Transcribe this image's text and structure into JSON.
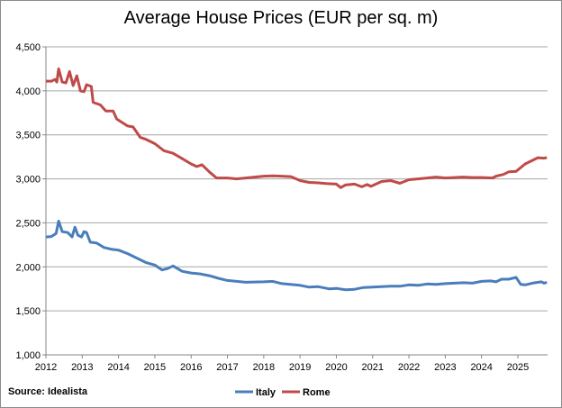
{
  "chart_data": {
    "type": "line",
    "title": "Average House Prices (EUR per sq. m)",
    "source": "Source: Idealista",
    "xlabel": "",
    "ylabel": "",
    "xlim": [
      2012,
      2025.8
    ],
    "ylim": [
      1000,
      4500
    ],
    "x_ticks": [
      "2012",
      "2013",
      "2014",
      "2015",
      "2016",
      "2017",
      "2018",
      "2019",
      "2020",
      "2021",
      "2022",
      "2023",
      "2024",
      "2025"
    ],
    "y_ticks": [
      "1,000",
      "1,500",
      "2,000",
      "2,500",
      "3,000",
      "3,500",
      "4,000",
      "4,500"
    ],
    "grid": "horizontal",
    "legend": "bottom",
    "series": [
      {
        "name": "Italy",
        "color": "#4a7ebb",
        "points": [
          [
            2012,
            2340
          ],
          [
            2012.15,
            2345
          ],
          [
            2012.28,
            2380
          ],
          [
            2012.35,
            2520
          ],
          [
            2012.45,
            2400
          ],
          [
            2012.6,
            2390
          ],
          [
            2012.72,
            2340
          ],
          [
            2012.8,
            2450
          ],
          [
            2012.88,
            2360
          ],
          [
            2012.98,
            2340
          ],
          [
            2013.05,
            2400
          ],
          [
            2013.12,
            2390
          ],
          [
            2013.22,
            2280
          ],
          [
            2013.4,
            2270
          ],
          [
            2013.6,
            2220
          ],
          [
            2013.8,
            2200
          ],
          [
            2014,
            2190
          ],
          [
            2014.25,
            2150
          ],
          [
            2014.5,
            2100
          ],
          [
            2014.75,
            2050
          ],
          [
            2015,
            2020
          ],
          [
            2015.2,
            1965
          ],
          [
            2015.35,
            1980
          ],
          [
            2015.5,
            2010
          ],
          [
            2015.75,
            1950
          ],
          [
            2016,
            1930
          ],
          [
            2016.25,
            1920
          ],
          [
            2016.5,
            1900
          ],
          [
            2016.75,
            1870
          ],
          [
            2017,
            1845
          ],
          [
            2017.5,
            1825
          ],
          [
            2018,
            1830
          ],
          [
            2018.25,
            1835
          ],
          [
            2018.5,
            1810
          ],
          [
            2019,
            1790
          ],
          [
            2019.25,
            1770
          ],
          [
            2019.5,
            1775
          ],
          [
            2019.8,
            1750
          ],
          [
            2020,
            1755
          ],
          [
            2020.25,
            1740
          ],
          [
            2020.5,
            1745
          ],
          [
            2020.75,
            1765
          ],
          [
            2021,
            1770
          ],
          [
            2021.5,
            1780
          ],
          [
            2021.75,
            1780
          ],
          [
            2022,
            1795
          ],
          [
            2022.25,
            1790
          ],
          [
            2022.5,
            1805
          ],
          [
            2022.75,
            1800
          ],
          [
            2023,
            1810
          ],
          [
            2023.25,
            1815
          ],
          [
            2023.5,
            1820
          ],
          [
            2023.75,
            1815
          ],
          [
            2024,
            1835
          ],
          [
            2024.25,
            1840
          ],
          [
            2024.4,
            1830
          ],
          [
            2024.55,
            1860
          ],
          [
            2024.75,
            1860
          ],
          [
            2024.95,
            1880
          ],
          [
            2025.08,
            1800
          ],
          [
            2025.2,
            1795
          ],
          [
            2025.4,
            1815
          ],
          [
            2025.65,
            1830
          ],
          [
            2025.72,
            1815
          ],
          [
            2025.8,
            1825
          ]
        ]
      },
      {
        "name": "Rome",
        "color": "#be4b48",
        "points": [
          [
            2012,
            4110
          ],
          [
            2012.15,
            4110
          ],
          [
            2012.25,
            4130
          ],
          [
            2012.3,
            4100
          ],
          [
            2012.35,
            4250
          ],
          [
            2012.45,
            4100
          ],
          [
            2012.55,
            4090
          ],
          [
            2012.65,
            4220
          ],
          [
            2012.75,
            4060
          ],
          [
            2012.85,
            4170
          ],
          [
            2012.95,
            4000
          ],
          [
            2013.05,
            3990
          ],
          [
            2013.12,
            4070
          ],
          [
            2013.25,
            4050
          ],
          [
            2013.3,
            3870
          ],
          [
            2013.5,
            3840
          ],
          [
            2013.65,
            3770
          ],
          [
            2013.85,
            3770
          ],
          [
            2013.95,
            3680
          ],
          [
            2014.1,
            3640
          ],
          [
            2014.25,
            3600
          ],
          [
            2014.4,
            3590
          ],
          [
            2014.6,
            3470
          ],
          [
            2014.75,
            3450
          ],
          [
            2015,
            3400
          ],
          [
            2015.25,
            3320
          ],
          [
            2015.5,
            3290
          ],
          [
            2015.75,
            3230
          ],
          [
            2016,
            3170
          ],
          [
            2016.15,
            3140
          ],
          [
            2016.3,
            3160
          ],
          [
            2016.5,
            3080
          ],
          [
            2016.7,
            3010
          ],
          [
            2017,
            3010
          ],
          [
            2017.25,
            3000
          ],
          [
            2017.5,
            3010
          ],
          [
            2017.75,
            3020
          ],
          [
            2018,
            3030
          ],
          [
            2018.25,
            3035
          ],
          [
            2018.5,
            3030
          ],
          [
            2018.75,
            3025
          ],
          [
            2019,
            2980
          ],
          [
            2019.25,
            2960
          ],
          [
            2019.5,
            2955
          ],
          [
            2019.75,
            2945
          ],
          [
            2020,
            2940
          ],
          [
            2020.12,
            2900
          ],
          [
            2020.25,
            2930
          ],
          [
            2020.5,
            2940
          ],
          [
            2020.7,
            2910
          ],
          [
            2020.85,
            2935
          ],
          [
            2020.95,
            2915
          ],
          [
            2021.25,
            2970
          ],
          [
            2021.5,
            2980
          ],
          [
            2021.75,
            2950
          ],
          [
            2022,
            2990
          ],
          [
            2022.25,
            3000
          ],
          [
            2022.5,
            3010
          ],
          [
            2022.75,
            3020
          ],
          [
            2023,
            3010
          ],
          [
            2023.25,
            3015
          ],
          [
            2023.5,
            3020
          ],
          [
            2023.75,
            3015
          ],
          [
            2024,
            3015
          ],
          [
            2024.3,
            3010
          ],
          [
            2024.4,
            3030
          ],
          [
            2024.6,
            3050
          ],
          [
            2024.75,
            3080
          ],
          [
            2024.95,
            3085
          ],
          [
            2025.2,
            3170
          ],
          [
            2025.4,
            3210
          ],
          [
            2025.55,
            3240
          ],
          [
            2025.7,
            3235
          ],
          [
            2025.8,
            3240
          ]
        ]
      }
    ]
  }
}
